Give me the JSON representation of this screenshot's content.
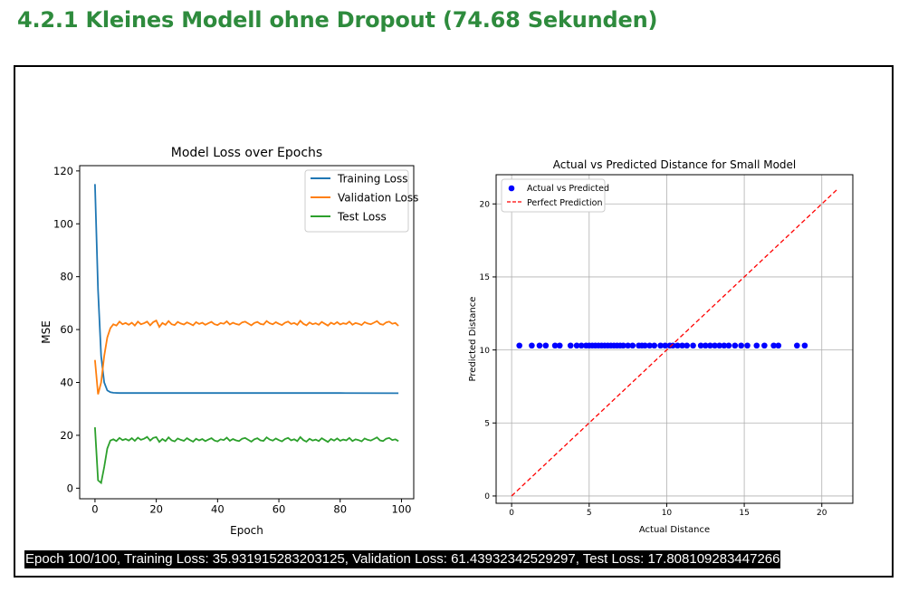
{
  "heading": "4.2.1 Kleines Modell ohne Dropout (74.68 Sekunden)",
  "console_output": "Epoch 100/100, Training Loss: 35.931915283203125, Validation Loss: 61.43932342529297, Test Loss: 17.808109283447266",
  "chart_data": [
    {
      "type": "line",
      "title": "Model Loss over Epochs",
      "xlabel": "Epoch",
      "ylabel": "MSE",
      "xlim": [
        -5,
        104
      ],
      "ylim": [
        -4,
        122
      ],
      "xticks": [
        0,
        20,
        40,
        60,
        80,
        100
      ],
      "yticks": [
        0,
        20,
        40,
        60,
        80,
        100,
        120
      ],
      "grid": false,
      "legend_position": "top-right",
      "series": [
        {
          "name": "Training Loss",
          "color": "#1f77b4",
          "x": [
            0,
            1,
            2,
            3,
            4,
            5,
            6,
            8,
            10,
            20,
            40,
            60,
            80,
            99
          ],
          "y": [
            115,
            75,
            50,
            40,
            37,
            36.3,
            36.1,
            36,
            36,
            36,
            36,
            36,
            36,
            35.93
          ]
        },
        {
          "name": "Validation Loss",
          "color": "#ff7f0e",
          "x": [
            0,
            1,
            2,
            3,
            4,
            5,
            6,
            7,
            8,
            9,
            10,
            11,
            12,
            13,
            14,
            15,
            16,
            17,
            18,
            19,
            20,
            21,
            22,
            23,
            24,
            25,
            26,
            27,
            28,
            29,
            30,
            31,
            32,
            33,
            34,
            35,
            36,
            37,
            38,
            39,
            40,
            41,
            42,
            43,
            44,
            45,
            46,
            47,
            48,
            49,
            50,
            51,
            52,
            53,
            54,
            55,
            56,
            57,
            58,
            59,
            60,
            61,
            62,
            63,
            64,
            65,
            66,
            67,
            68,
            69,
            70,
            71,
            72,
            73,
            74,
            75,
            76,
            77,
            78,
            79,
            80,
            81,
            82,
            83,
            84,
            85,
            86,
            87,
            88,
            89,
            90,
            91,
            92,
            93,
            94,
            95,
            96,
            97,
            98,
            99
          ],
          "y": [
            48.5,
            35.5,
            40,
            50,
            57,
            60.5,
            62,
            61.5,
            63,
            62,
            62.5,
            61.8,
            62.6,
            61.5,
            63,
            62,
            62.4,
            63,
            61.6,
            62.8,
            63.4,
            61,
            62.5,
            61.8,
            63.2,
            62,
            61.7,
            62.9,
            62.3,
            61.9,
            62.7,
            62.2,
            61.6,
            62.8,
            62.1,
            62.6,
            61.8,
            62.4,
            62.9,
            62,
            61.7,
            62.5,
            62.2,
            63.1,
            61.9,
            62.6,
            62.1,
            61.8,
            62.7,
            63,
            62.3,
            61.6,
            62.5,
            62.9,
            62.1,
            61.9,
            63.2,
            62.4,
            62,
            62.8,
            62.2,
            61.7,
            62.6,
            63,
            62.1,
            62.5,
            61.8,
            63.3,
            62.2,
            61.6,
            62.7,
            62,
            62.4,
            61.8,
            62.9,
            62.2,
            61.5,
            62.6,
            62,
            62.8,
            61.9,
            62.4,
            62.1,
            63,
            61.8,
            62.5,
            62.2,
            61.7,
            62.8,
            62.3,
            62,
            62.6,
            63.2,
            62.1,
            61.8,
            62.7,
            63,
            62.2,
            62.5,
            61.4
          ]
        },
        {
          "name": "Test Loss",
          "color": "#2ca02c",
          "x": [
            0,
            1,
            2,
            3,
            4,
            5,
            6,
            7,
            8,
            9,
            10,
            11,
            12,
            13,
            14,
            15,
            16,
            17,
            18,
            19,
            20,
            21,
            22,
            23,
            24,
            25,
            26,
            27,
            28,
            29,
            30,
            31,
            32,
            33,
            34,
            35,
            36,
            37,
            38,
            39,
            40,
            41,
            42,
            43,
            44,
            45,
            46,
            47,
            48,
            49,
            50,
            51,
            52,
            53,
            54,
            55,
            56,
            57,
            58,
            59,
            60,
            61,
            62,
            63,
            64,
            65,
            66,
            67,
            68,
            69,
            70,
            71,
            72,
            73,
            74,
            75,
            76,
            77,
            78,
            79,
            80,
            81,
            82,
            83,
            84,
            85,
            86,
            87,
            88,
            89,
            90,
            91,
            92,
            93,
            94,
            95,
            96,
            97,
            98,
            99
          ],
          "y": [
            23,
            3,
            2,
            8,
            15,
            18,
            18.5,
            17.8,
            19,
            18.2,
            18.6,
            18,
            18.9,
            17.9,
            19.1,
            18.3,
            18.7,
            19.4,
            18,
            19,
            19.3,
            17.5,
            18.6,
            17.8,
            19.2,
            18.1,
            17.7,
            18.8,
            18.3,
            17.9,
            18.9,
            18.2,
            17.6,
            18.7,
            18.1,
            18.6,
            17.8,
            18.4,
            18.9,
            18,
            17.7,
            18.5,
            18.2,
            19.1,
            17.9,
            18.6,
            18.1,
            17.8,
            18.7,
            19,
            18.3,
            17.6,
            18.5,
            18.9,
            18.1,
            17.9,
            19.2,
            18.4,
            18,
            18.8,
            18.2,
            17.7,
            18.6,
            19,
            18.1,
            18.5,
            17.8,
            19.3,
            18.2,
            17.6,
            18.7,
            18,
            18.4,
            17.8,
            18.9,
            18.2,
            17.5,
            18.6,
            18,
            18.8,
            17.9,
            18.4,
            18.1,
            19,
            17.8,
            18.5,
            18.2,
            17.7,
            18.8,
            18.3,
            18,
            18.6,
            19.2,
            18.1,
            17.8,
            18.7,
            19,
            18.2,
            18.5,
            17.8
          ]
        }
      ]
    },
    {
      "type": "scatter",
      "title": "Actual vs Predicted Distance for Small Model",
      "xlabel": "Actual Distance",
      "ylabel": "Predicted Distance",
      "xlim": [
        -1,
        22
      ],
      "ylim": [
        -0.5,
        22
      ],
      "xticks": [
        0,
        5,
        10,
        15,
        20
      ],
      "yticks": [
        0,
        5,
        10,
        15,
        20
      ],
      "grid": true,
      "legend_position": "top-left",
      "series": [
        {
          "name": "Actual vs Predicted",
          "kind": "scatter",
          "color": "#0000ff",
          "x": [
            0.5,
            1.3,
            1.8,
            2.2,
            2.8,
            3.1,
            3.8,
            4.2,
            4.5,
            4.8,
            5.0,
            5.2,
            5.4,
            5.6,
            5.8,
            6.0,
            6.2,
            6.4,
            6.6,
            6.8,
            7.0,
            7.2,
            7.5,
            7.8,
            8.2,
            8.4,
            8.6,
            8.9,
            9.2,
            9.6,
            9.9,
            10.2,
            10.4,
            10.7,
            11.0,
            11.3,
            11.7,
            12.2,
            12.5,
            12.8,
            13.1,
            13.4,
            13.7,
            14.0,
            14.4,
            14.8,
            15.2,
            15.8,
            16.3,
            16.9,
            17.2,
            18.4,
            18.9
          ],
          "y": [
            10.3,
            10.3,
            10.3,
            10.3,
            10.3,
            10.3,
            10.3,
            10.3,
            10.3,
            10.3,
            10.3,
            10.3,
            10.3,
            10.3,
            10.3,
            10.3,
            10.3,
            10.3,
            10.3,
            10.3,
            10.3,
            10.3,
            10.3,
            10.3,
            10.3,
            10.3,
            10.3,
            10.3,
            10.3,
            10.3,
            10.3,
            10.3,
            10.3,
            10.3,
            10.3,
            10.3,
            10.3,
            10.3,
            10.3,
            10.3,
            10.3,
            10.3,
            10.3,
            10.3,
            10.3,
            10.3,
            10.3,
            10.3,
            10.3,
            10.3,
            10.3,
            10.3,
            10.3
          ]
        },
        {
          "name": "Perfect Prediction",
          "kind": "line",
          "dashed": true,
          "color": "#ff0000",
          "x": [
            0,
            21
          ],
          "y": [
            0,
            21
          ]
        }
      ]
    }
  ]
}
